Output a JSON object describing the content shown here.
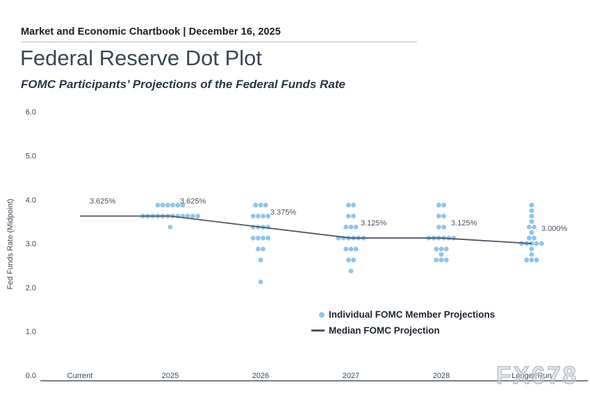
{
  "header": {
    "text": "Market and Economic Chartbook | December 16, 2025"
  },
  "title": "Federal Reserve Dot Plot",
  "subtitle": "FOMC Participants’ Projections of the Federal Funds Rate",
  "watermark": "FX678",
  "colors": {
    "dot": "#8fc4eb",
    "median_line": "#4a5663",
    "axis_line": "#768089",
    "tick_text": "#3d4752",
    "title_text": "#3a4553"
  },
  "legend": {
    "items": [
      {
        "marker": "dot-icon",
        "label": "Individual FOMC Member Projections"
      },
      {
        "marker": "line-icon",
        "label": "Median FOMC Projection"
      }
    ]
  },
  "chart_data": {
    "type": "scatter",
    "title": "Federal Reserve Dot Plot",
    "subtitle": "FOMC Participants’ Projections of the Federal Funds Rate",
    "xlabel": "",
    "ylabel": "Fed Funds Rate (Midpoint)",
    "ylim": [
      0.0,
      6.0
    ],
    "yticks": [
      0.0,
      1.0,
      2.0,
      3.0,
      4.0,
      5.0,
      6.0
    ],
    "grid": false,
    "legend_position": "lower center",
    "categories": [
      "Current",
      "2025",
      "2026",
      "2027",
      "2028",
      "Longer Run"
    ],
    "series": [
      {
        "name": "Median FOMC Projection",
        "type": "line",
        "values": [
          3.625,
          3.625,
          3.375,
          3.125,
          3.125,
          3.0
        ]
      }
    ],
    "median_labels": [
      "3.625%",
      "3.625%",
      "3.375%",
      "3.125%",
      "3.125%",
      "3.000%"
    ],
    "dot_groups": [
      [],
      [
        {
          "rate": 3.875,
          "count": 6
        },
        {
          "rate": 3.625,
          "count": 12
        },
        {
          "rate": 3.375,
          "count": 1
        }
      ],
      [
        {
          "rate": 3.875,
          "count": 3
        },
        {
          "rate": 3.625,
          "count": 4
        },
        {
          "rate": 3.375,
          "count": 4
        },
        {
          "rate": 3.125,
          "count": 4
        },
        {
          "rate": 2.875,
          "count": 2
        },
        {
          "rate": 2.625,
          "count": 1
        },
        {
          "rate": 2.125,
          "count": 1
        }
      ],
      [
        {
          "rate": 3.875,
          "count": 2
        },
        {
          "rate": 3.625,
          "count": 2
        },
        {
          "rate": 3.375,
          "count": 3
        },
        {
          "rate": 3.125,
          "count": 6
        },
        {
          "rate": 2.875,
          "count": 3
        },
        {
          "rate": 2.625,
          "count": 2
        },
        {
          "rate": 2.375,
          "count": 1
        }
      ],
      [
        {
          "rate": 3.875,
          "count": 2
        },
        {
          "rate": 3.625,
          "count": 2
        },
        {
          "rate": 3.375,
          "count": 2
        },
        {
          "rate": 3.125,
          "count": 6
        },
        {
          "rate": 2.875,
          "count": 3
        },
        {
          "rate": 2.75,
          "count": 1
        },
        {
          "rate": 2.625,
          "count": 3
        }
      ],
      [
        {
          "rate": 3.875,
          "count": 1
        },
        {
          "rate": 3.75,
          "count": 1
        },
        {
          "rate": 3.625,
          "count": 1
        },
        {
          "rate": 3.5,
          "count": 1
        },
        {
          "rate": 3.375,
          "count": 2
        },
        {
          "rate": 3.25,
          "count": 1
        },
        {
          "rate": 3.125,
          "count": 2
        },
        {
          "rate": 3.0,
          "count": 5
        },
        {
          "rate": 2.875,
          "count": 1
        },
        {
          "rate": 2.75,
          "count": 1
        },
        {
          "rate": 2.625,
          "count": 3
        }
      ]
    ]
  }
}
